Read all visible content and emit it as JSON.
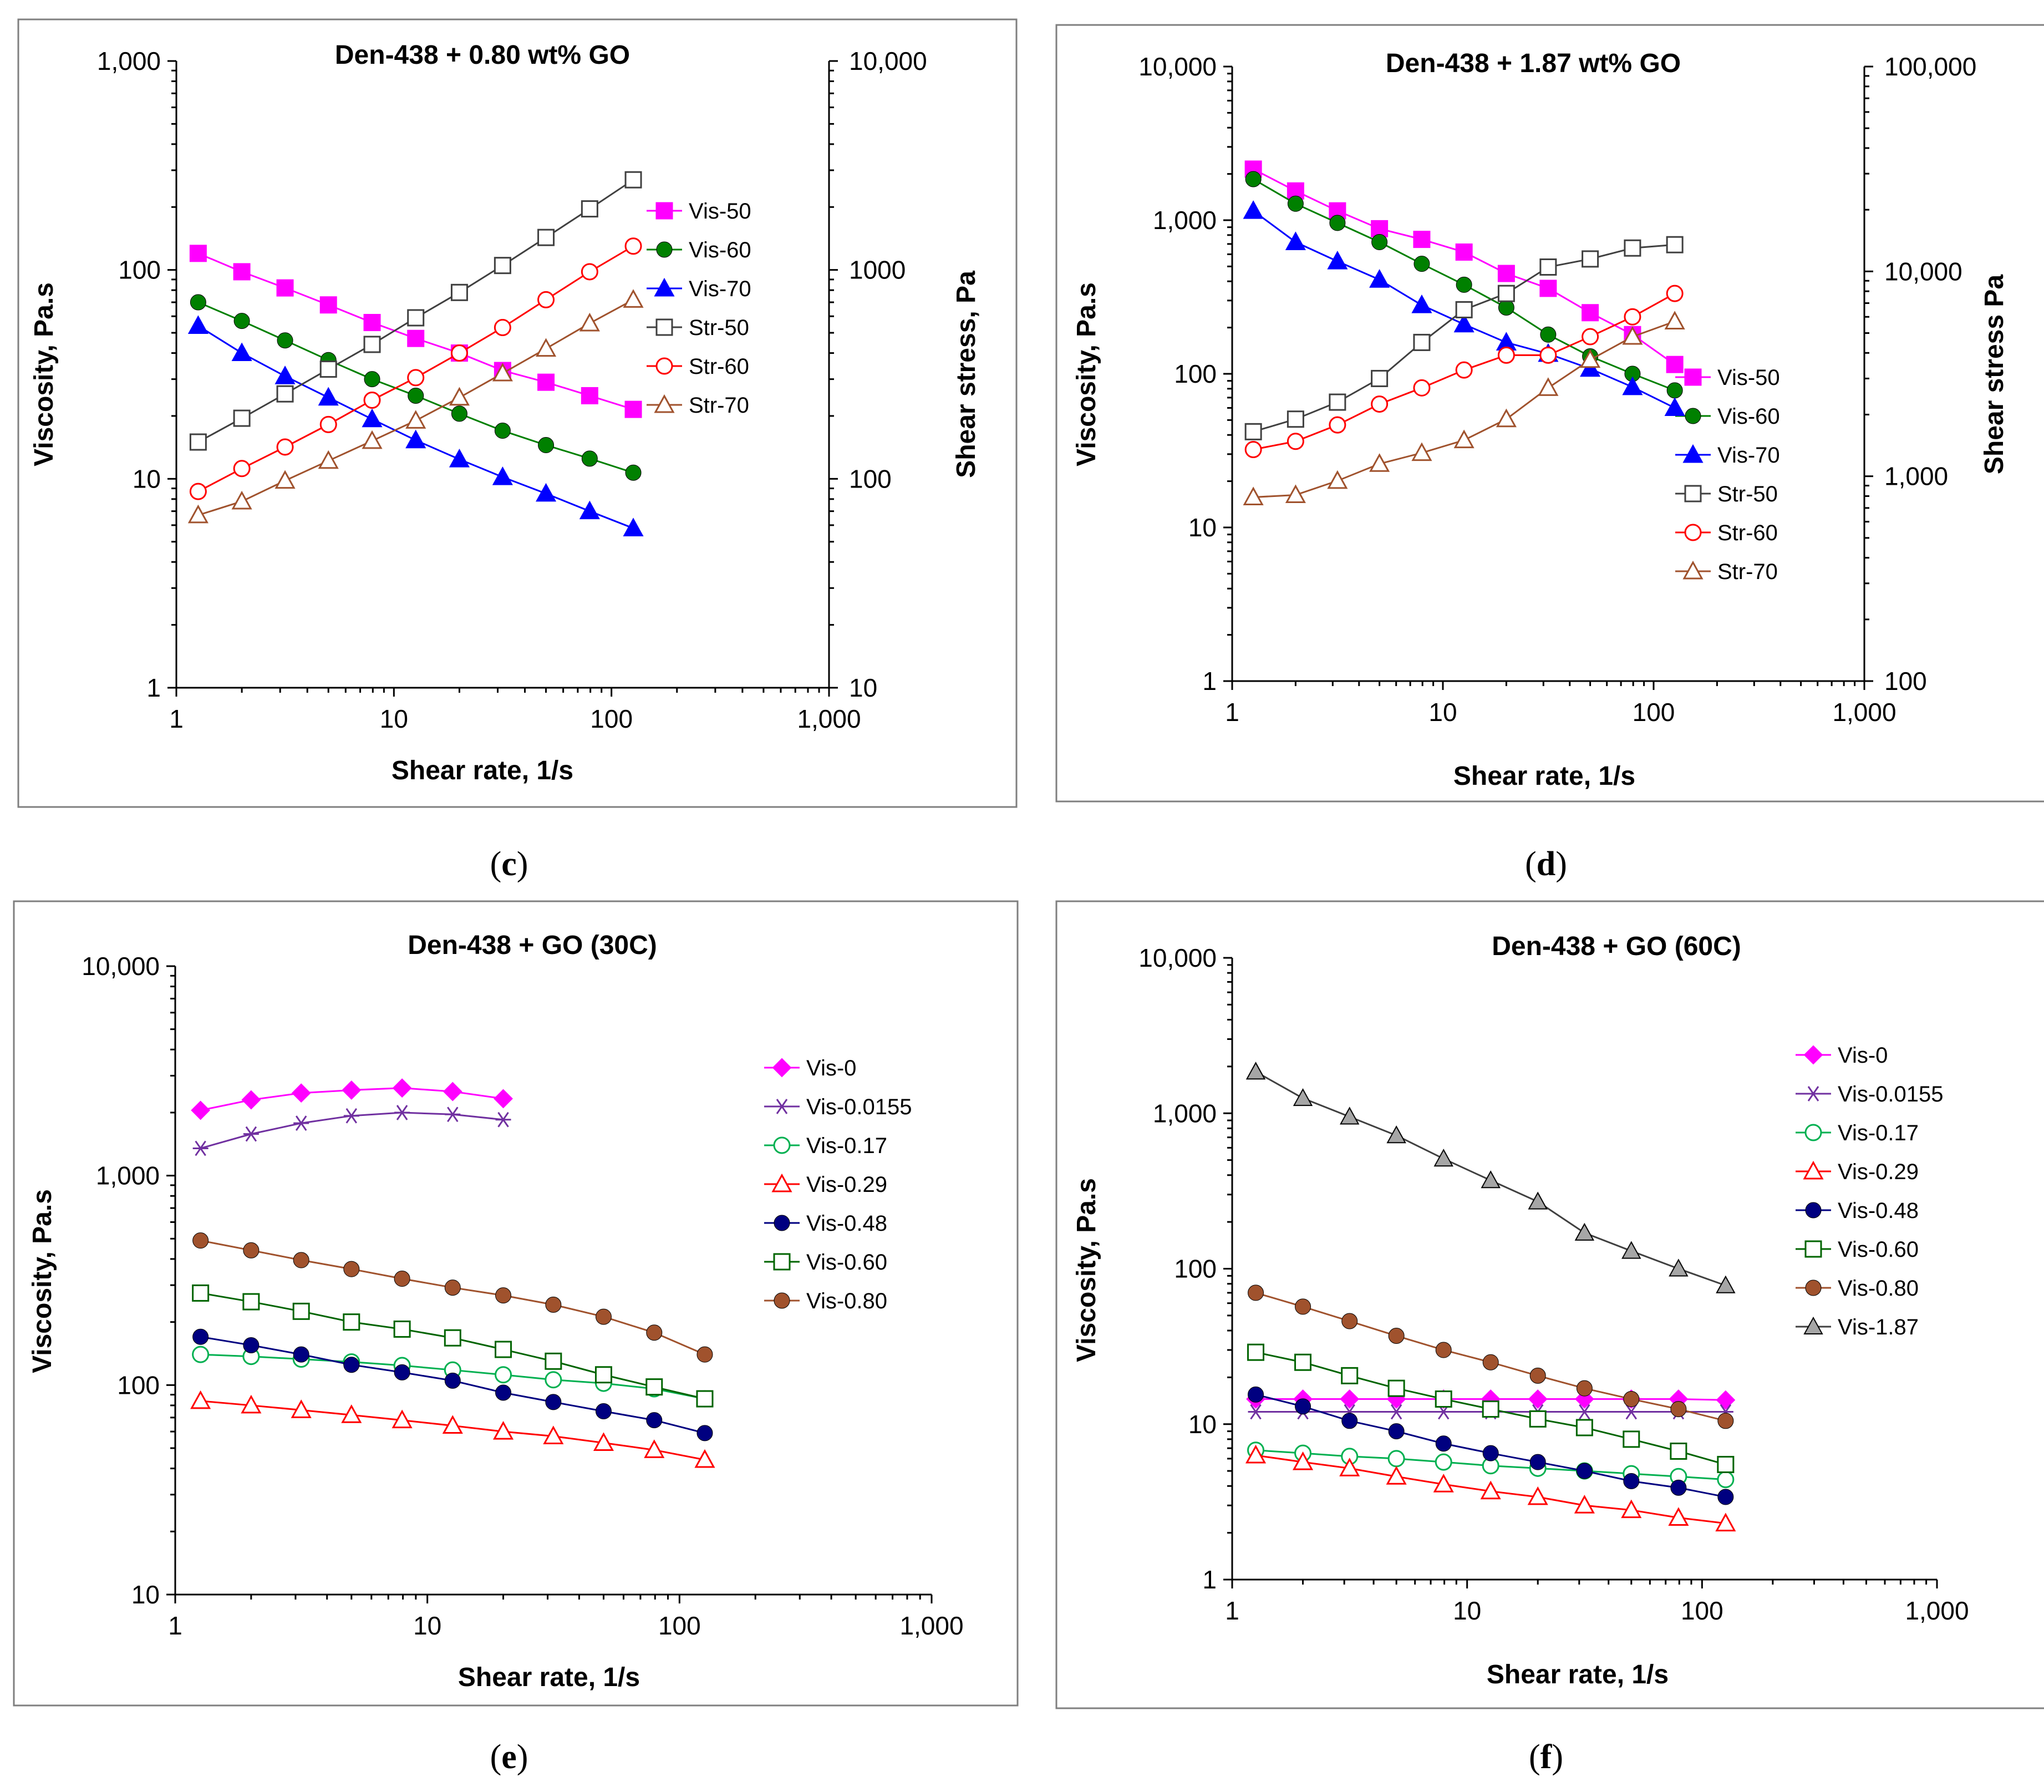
{
  "chart_data": [
    {
      "panel": "c",
      "type": "line",
      "title": "Den-438 + 0.80 wt% GO",
      "xlabel": "Shear rate, 1/s",
      "ylabel": "Viscosity, Pa.s",
      "y2label": "Shear stress, Pa",
      "xscale": "log",
      "yscale": "log",
      "y2scale": "log",
      "xlim": [
        1,
        1000
      ],
      "ylim": [
        1,
        1000
      ],
      "y2lim": [
        10,
        10000
      ],
      "x_ticks": [
        "1",
        "10",
        "100",
        "1,000"
      ],
      "y_ticks": [
        "1",
        "10",
        "100",
        "1,000"
      ],
      "y2_ticks": [
        "10",
        "100",
        "1000",
        "10,000"
      ],
      "x": [
        1.26,
        2,
        3.16,
        5,
        7.94,
        12.6,
        20,
        31.6,
        50,
        79.4,
        126
      ],
      "series": [
        {
          "name": "Vis-50",
          "axis": "left",
          "color": "#ff00ff",
          "marker": "square-filled",
          "values": [
            120,
            98,
            82,
            68,
            56,
            47,
            40,
            33,
            29,
            25,
            21.5
          ]
        },
        {
          "name": "Vis-60",
          "axis": "left",
          "color": "#008000",
          "marker": "circle-filled",
          "values": [
            70,
            57,
            46,
            37,
            30,
            25,
            20.5,
            17,
            14.5,
            12.5,
            10.7
          ]
        },
        {
          "name": "Vis-70",
          "axis": "left",
          "color": "#0000ff",
          "marker": "triangle-filled",
          "values": [
            54,
            40,
            31,
            24.5,
            19.3,
            15.3,
            12.4,
            10.2,
            8.5,
            7,
            5.8
          ]
        },
        {
          "name": "Str-50",
          "axis": "right",
          "color": "#404040",
          "marker": "square-open",
          "values": [
            150,
            195,
            255,
            335,
            440,
            590,
            780,
            1050,
            1430,
            1960,
            2700
          ]
        },
        {
          "name": "Str-60",
          "axis": "right",
          "color": "#ff0000",
          "marker": "circle-open",
          "values": [
            87,
            112,
            142,
            182,
            238,
            305,
            400,
            530,
            720,
            980,
            1300
          ]
        },
        {
          "name": "Str-70",
          "axis": "right",
          "color": "#a0522d",
          "marker": "triangle-open",
          "values": [
            67,
            78,
            98,
            122,
            152,
            190,
            245,
            320,
            420,
            555,
            720
          ]
        }
      ],
      "legend": "right"
    },
    {
      "panel": "d",
      "type": "line",
      "title": "Den-438 + 1.87 wt% GO",
      "xlabel": "Shear rate, 1/s",
      "ylabel": "Viscosity, Pa.s",
      "y2label": "Shear stress Pa",
      "xscale": "log",
      "yscale": "log",
      "y2scale": "log",
      "xlim": [
        1,
        1000
      ],
      "ylim": [
        1,
        10000
      ],
      "y2lim": [
        100,
        100000
      ],
      "x_ticks": [
        "1",
        "10",
        "100",
        "1,000"
      ],
      "y_ticks": [
        "1",
        "10",
        "100",
        "1,000",
        "10,000"
      ],
      "y2_ticks": [
        "100",
        "1,000",
        "10,000",
        "100,000"
      ],
      "x": [
        1.26,
        2,
        3.16,
        5,
        7.94,
        12.6,
        20,
        31.6,
        50,
        79.4,
        126
      ],
      "series": [
        {
          "name": "Vis-50",
          "axis": "left",
          "color": "#ff00ff",
          "marker": "square-filled",
          "values": [
            2150,
            1550,
            1150,
            880,
            750,
            620,
            450,
            360,
            250,
            180,
            115
          ]
        },
        {
          "name": "Vis-60",
          "axis": "left",
          "color": "#008000",
          "marker": "circle-filled",
          "values": [
            1850,
            1280,
            960,
            720,
            520,
            380,
            270,
            180,
            130,
            100,
            78
          ]
        },
        {
          "name": "Vis-70",
          "axis": "left",
          "color": "#0000ff",
          "marker": "triangle-filled",
          "values": [
            1150,
            720,
            540,
            410,
            280,
            210,
            160,
            135,
            108,
            82,
            60
          ]
        },
        {
          "name": "Str-50",
          "axis": "right",
          "color": "#404040",
          "marker": "square-open",
          "values": [
            1650,
            1900,
            2300,
            3000,
            4500,
            6500,
            7800,
            10500,
            11500,
            13000,
            13500
          ]
        },
        {
          "name": "Str-60",
          "axis": "right",
          "color": "#ff0000",
          "marker": "circle-open",
          "values": [
            1350,
            1480,
            1780,
            2250,
            2700,
            3300,
            3900,
            3900,
            4800,
            6000,
            7800
          ]
        },
        {
          "name": "Str-70",
          "axis": "right",
          "color": "#a0522d",
          "marker": "triangle-open",
          "values": [
            790,
            810,
            950,
            1150,
            1300,
            1500,
            1900,
            2700,
            3700,
            4800,
            5700
          ]
        }
      ],
      "legend": "right"
    },
    {
      "panel": "e",
      "type": "line",
      "title": "Den-438 + GO (30C)",
      "xlabel": "Shear rate, 1/s",
      "ylabel": "Viscosity, Pa.s",
      "xscale": "log",
      "yscale": "log",
      "xlim": [
        1,
        1000
      ],
      "ylim": [
        10,
        10000
      ],
      "x_ticks": [
        "1",
        "10",
        "100",
        "1,000"
      ],
      "y_ticks": [
        "10",
        "100",
        "1,000",
        "10,000"
      ],
      "x": [
        1.26,
        2,
        3.16,
        5,
        7.94,
        12.6,
        20,
        31.6,
        50,
        79.4,
        126
      ],
      "series": [
        {
          "name": "Vis-0",
          "color": "#ff00ff",
          "marker": "diamond-filled",
          "values": [
            2050,
            2300,
            2480,
            2560,
            2620,
            2520,
            2330,
            null,
            null,
            null,
            null
          ]
        },
        {
          "name": "Vis-0.0155",
          "color": "#7030a0",
          "marker": "asterisk",
          "values": [
            1350,
            1580,
            1780,
            1930,
            2000,
            1960,
            1850,
            null,
            null,
            null,
            null
          ]
        },
        {
          "name": "Vis-0.17",
          "color": "#00b050",
          "marker": "circle-open",
          "values": [
            140,
            137,
            133,
            129,
            124,
            118,
            112,
            106,
            102,
            96,
            86
          ]
        },
        {
          "name": "Vis-0.29",
          "color": "#ff0000",
          "marker": "triangle-open",
          "values": [
            84,
            80,
            76,
            72,
            68,
            64,
            60,
            57,
            53,
            49,
            44
          ]
        },
        {
          "name": "Vis-0.48",
          "color": "#000080",
          "marker": "circle-filled",
          "values": [
            170,
            155,
            140,
            125,
            115,
            105,
            92,
            83,
            75,
            68,
            59
          ]
        },
        {
          "name": "Vis-0.60",
          "color": "#006400",
          "marker": "square-open",
          "values": [
            275,
            250,
            225,
            200,
            185,
            168,
            148,
            130,
            112,
            98,
            86
          ]
        },
        {
          "name": "Vis-0.80",
          "color": "#a0522d",
          "marker": "circle-filled",
          "values": [
            490,
            440,
            395,
            358,
            322,
            292,
            268,
            242,
            212,
            178,
            140
          ]
        }
      ],
      "legend": "right"
    },
    {
      "panel": "f",
      "type": "line",
      "title": "Den-438 + GO (60C)",
      "xlabel": "Shear rate, 1/s",
      "ylabel": "Viscosity, Pa.s",
      "xscale": "log",
      "yscale": "log",
      "xlim": [
        1,
        1000
      ],
      "ylim": [
        1,
        10000
      ],
      "x_ticks": [
        "1",
        "10",
        "100",
        "1,000"
      ],
      "y_ticks": [
        "1",
        "10",
        "100",
        "1,000",
        "10,000"
      ],
      "x": [
        1.26,
        2,
        3.16,
        5,
        7.94,
        12.6,
        20,
        31.6,
        50,
        79.4,
        126
      ],
      "series": [
        {
          "name": "Vis-0",
          "color": "#ff00ff",
          "marker": "diamond-filled",
          "values": [
            14.5,
            14.5,
            14.5,
            14.5,
            14.5,
            14.5,
            14.5,
            14.5,
            14.5,
            14.5,
            14.3
          ]
        },
        {
          "name": "Vis-0.0155",
          "color": "#7030a0",
          "marker": "asterisk",
          "values": [
            12,
            12,
            12,
            12,
            12,
            12,
            12,
            12,
            12,
            12,
            12
          ]
        },
        {
          "name": "Vis-0.17",
          "color": "#00b050",
          "marker": "circle-open",
          "values": [
            6.8,
            6.5,
            6.2,
            6,
            5.7,
            5.4,
            5.2,
            5,
            4.8,
            4.6,
            4.4
          ]
        },
        {
          "name": "Vis-0.29",
          "color": "#ff0000",
          "marker": "triangle-open",
          "values": [
            6.3,
            5.7,
            5.2,
            4.6,
            4.1,
            3.7,
            3.4,
            3,
            2.8,
            2.5,
            2.3
          ]
        },
        {
          "name": "Vis-0.48",
          "color": "#000080",
          "marker": "circle-filled",
          "values": [
            15.5,
            13,
            10.5,
            9,
            7.5,
            6.5,
            5.7,
            5,
            4.3,
            3.9,
            3.4
          ]
        },
        {
          "name": "Vis-0.60",
          "color": "#006400",
          "marker": "square-open",
          "values": [
            29,
            25,
            20.5,
            17,
            14.5,
            12.5,
            10.8,
            9.5,
            8,
            6.7,
            5.5
          ]
        },
        {
          "name": "Vis-0.80",
          "color": "#a0522d",
          "marker": "circle-filled",
          "values": [
            70,
            57,
            46,
            37,
            30,
            25,
            20.5,
            17,
            14.5,
            12.5,
            10.5
          ]
        },
        {
          "name": "Vis-1.87",
          "color": "#404040",
          "marker": "triangle-gray",
          "values": [
            1850,
            1250,
            950,
            720,
            510,
            370,
            270,
            170,
            130,
            100,
            78
          ]
        }
      ],
      "legend": "right"
    }
  ],
  "captions": {
    "c": {
      "open": "(",
      "letter": "c",
      "close": ")"
    },
    "d": {
      "open": "(",
      "letter": "d",
      "close": ")"
    },
    "e": {
      "open": "(",
      "letter": "e",
      "close": ")"
    },
    "f": {
      "open": "(",
      "letter": "f",
      "close": ")"
    }
  }
}
